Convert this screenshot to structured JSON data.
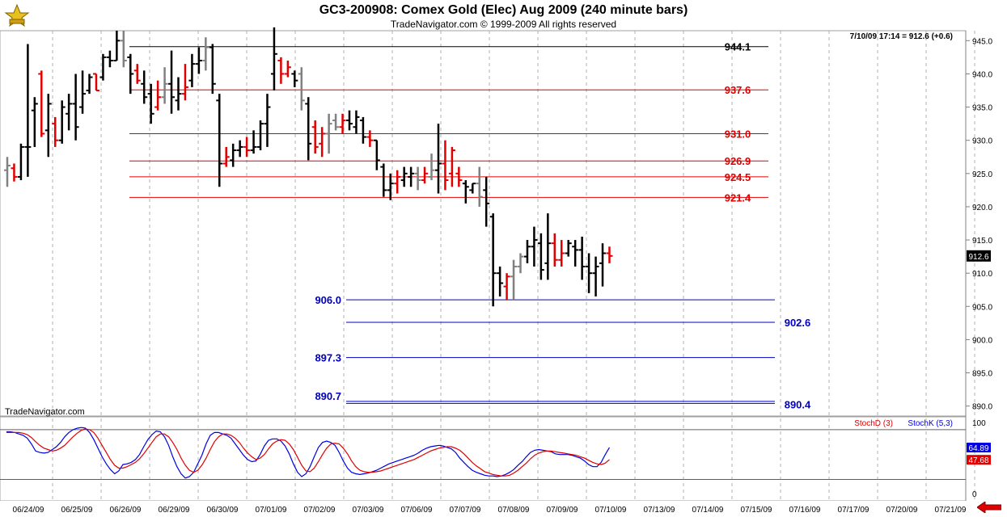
{
  "header": {
    "title": "GC3-200908:  Comex Gold (Elec) Aug 2009  (240 minute bars)",
    "subtitle": "TradeNavigator.com © 1999-2009 All rights reserved"
  },
  "info": {
    "last_update": "7/10/09 17:14 = 912.6 (+0.6)",
    "watermark": "TradeNavigator.com"
  },
  "colors": {
    "up_bar": "#000000",
    "down_bar": "#e00000",
    "neutral_bar": "#808080",
    "resistance_line": "#e00000",
    "support_line": "#0000c0",
    "grid": "#b0b0b0",
    "stoch_d": "#e00000",
    "stoch_k": "#0000e0"
  },
  "icons": {
    "logo": "trade-navigator-logo-icon",
    "scroll": "red-left-arrow-icon"
  },
  "chart_data": [
    {
      "type": "ohlc",
      "title": "GC3-200908:  Comex Gold (Elec) Aug 2009  (240 minute bars)",
      "y_axis": {
        "ticks": [
          890.0,
          895.0,
          900.0,
          905.0,
          910.0,
          915.0,
          920.0,
          925.0,
          930.0,
          935.0,
          940.0,
          945.0
        ],
        "range": [
          888.5,
          946.5
        ]
      },
      "x_labels": [
        "06/24/09",
        "06/25/09",
        "06/26/09",
        "06/29/09",
        "06/30/09",
        "07/01/09",
        "07/02/09",
        "07/03/09",
        "07/06/09",
        "07/07/09",
        "07/08/09",
        "07/09/09",
        "07/10/09",
        "07/13/09",
        "07/14/09",
        "07/15/09",
        "07/16/09",
        "07/17/09",
        "07/20/09",
        "07/21/09"
      ],
      "last_price": "912.6",
      "horizontal_levels": [
        {
          "value": 944.1,
          "label": "944.1",
          "color": "#000000"
        },
        {
          "value": 937.6,
          "label": "937.6",
          "color": "#e00000"
        },
        {
          "value": 931.0,
          "label": "931.0",
          "color": "#e00000"
        },
        {
          "value": 926.9,
          "label": "926.9",
          "color": "#e00000"
        },
        {
          "value": 924.5,
          "label": "924.5",
          "color": "#e00000"
        },
        {
          "value": 921.4,
          "label": "921.4",
          "color": "#e00000"
        },
        {
          "value": 906.0,
          "label": "906.0",
          "color": "#0000c0"
        },
        {
          "value": 902.6,
          "label": "902.6",
          "color": "#0000c0"
        },
        {
          "value": 897.3,
          "label": "897.3",
          "color": "#0000c0"
        },
        {
          "value": 890.7,
          "label": "890.7",
          "color": "#0000c0"
        },
        {
          "value": 890.4,
          "label": "890.4",
          "color": "#0000c0"
        }
      ],
      "bars": [
        {
          "h": 927.5,
          "l": 923.0,
          "o": 925.5,
          "c": 926.2,
          "k": "g"
        },
        {
          "h": 926.5,
          "l": 923.8,
          "o": 925.8,
          "c": 924.5,
          "k": "r"
        },
        {
          "h": 929.5,
          "l": 924.0,
          "o": 924.5,
          "c": 929.0,
          "k": "b"
        },
        {
          "h": 944.5,
          "l": 924.5,
          "o": 929.0,
          "c": 929.0,
          "k": "b"
        },
        {
          "h": 936.5,
          "l": 929.0,
          "o": 934.5,
          "c": 935.5,
          "k": "b"
        },
        {
          "h": 940.5,
          "l": 930.5,
          "o": 940.0,
          "c": 931.0,
          "k": "r"
        },
        {
          "h": 937.0,
          "l": 927.5,
          "o": 931.5,
          "c": 935.5,
          "k": "b"
        },
        {
          "h": 933.5,
          "l": 929.0,
          "o": 932.5,
          "c": 930.0,
          "k": "r"
        },
        {
          "h": 936.0,
          "l": 929.5,
          "o": 930.0,
          "c": 935.0,
          "k": "b"
        },
        {
          "h": 937.0,
          "l": 931.5,
          "o": 934.0,
          "c": 935.5,
          "k": "b"
        },
        {
          "h": 940.0,
          "l": 930.0,
          "o": 935.5,
          "c": 932.0,
          "k": "b"
        },
        {
          "h": 940.5,
          "l": 934.0,
          "o": 935.0,
          "c": 937.0,
          "k": "b"
        },
        {
          "h": 940.0,
          "l": 937.0,
          "o": 937.5,
          "c": 939.5,
          "k": "b"
        },
        {
          "h": 940.0,
          "l": 937.5,
          "o": 940.0,
          "c": 937.5,
          "k": "r"
        },
        {
          "h": 943.0,
          "l": 939.0,
          "o": 939.5,
          "c": 942.5,
          "k": "b"
        },
        {
          "h": 943.5,
          "l": 941.0,
          "o": 942.5,
          "c": 942.0,
          "k": "b"
        },
        {
          "h": 946.5,
          "l": 942.0,
          "o": 942.0,
          "c": 945.0,
          "k": "b"
        },
        {
          "h": 946.5,
          "l": 941.0,
          "o": 945.0,
          "c": 942.0,
          "k": "g"
        },
        {
          "h": 943.0,
          "l": 937.0,
          "o": 942.5,
          "c": 940.0,
          "k": "b"
        },
        {
          "h": 941.5,
          "l": 938.5,
          "o": 940.5,
          "c": 939.0,
          "k": "r"
        },
        {
          "h": 940.5,
          "l": 935.5,
          "o": 938.5,
          "c": 936.5,
          "k": "b"
        },
        {
          "h": 938.5,
          "l": 932.5,
          "o": 937.0,
          "c": 934.0,
          "k": "b"
        },
        {
          "h": 939.0,
          "l": 934.5,
          "o": 935.0,
          "c": 936.5,
          "k": "r"
        },
        {
          "h": 941.0,
          "l": 935.5,
          "o": 936.5,
          "c": 938.5,
          "k": "g"
        },
        {
          "h": 943.5,
          "l": 934.0,
          "o": 938.5,
          "c": 936.5,
          "k": "b"
        },
        {
          "h": 939.5,
          "l": 934.5,
          "o": 936.0,
          "c": 937.0,
          "k": "b"
        },
        {
          "h": 941.5,
          "l": 936.0,
          "o": 937.0,
          "c": 938.0,
          "k": "r"
        },
        {
          "h": 943.0,
          "l": 938.0,
          "o": 939.0,
          "c": 941.5,
          "k": "b"
        },
        {
          "h": 944.0,
          "l": 940.0,
          "o": 941.5,
          "c": 942.0,
          "k": "b"
        },
        {
          "h": 945.5,
          "l": 940.5,
          "o": 942.0,
          "c": 944.0,
          "k": "g"
        },
        {
          "h": 944.5,
          "l": 937.0,
          "o": 944.0,
          "c": 938.5,
          "k": "b"
        },
        {
          "h": 937.0,
          "l": 923.0,
          "o": 936.0,
          "c": 926.5,
          "k": "b"
        },
        {
          "h": 929.0,
          "l": 926.0,
          "o": 926.5,
          "c": 927.5,
          "k": "r"
        },
        {
          "h": 929.5,
          "l": 926.0,
          "o": 927.0,
          "c": 928.5,
          "k": "b"
        },
        {
          "h": 930.0,
          "l": 927.5,
          "o": 928.5,
          "c": 929.0,
          "k": "b"
        },
        {
          "h": 930.5,
          "l": 927.5,
          "o": 929.0,
          "c": 928.5,
          "k": "r"
        },
        {
          "h": 931.5,
          "l": 928.0,
          "o": 928.5,
          "c": 929.0,
          "k": "b"
        },
        {
          "h": 933.0,
          "l": 928.5,
          "o": 929.0,
          "c": 932.5,
          "k": "b"
        },
        {
          "h": 937.0,
          "l": 929.0,
          "o": 932.5,
          "c": 935.0,
          "k": "b"
        },
        {
          "h": 947.0,
          "l": 937.5,
          "o": 940.0,
          "c": 943.0,
          "k": "b"
        },
        {
          "h": 942.5,
          "l": 938.5,
          "o": 942.0,
          "c": 940.0,
          "k": "r"
        },
        {
          "h": 942.0,
          "l": 939.5,
          "o": 940.0,
          "c": 941.0,
          "k": "r"
        },
        {
          "h": 940.5,
          "l": 938.0,
          "o": 940.0,
          "c": 939.0,
          "k": "b"
        },
        {
          "h": 941.0,
          "l": 934.5,
          "o": 940.0,
          "c": 936.0,
          "k": "g"
        },
        {
          "h": 936.5,
          "l": 927.0,
          "o": 935.5,
          "c": 929.5,
          "k": "b"
        },
        {
          "h": 933.0,
          "l": 928.0,
          "o": 932.0,
          "c": 929.0,
          "k": "r"
        },
        {
          "h": 932.0,
          "l": 927.5,
          "o": 929.5,
          "c": 931.0,
          "k": "r"
        },
        {
          "h": 934.0,
          "l": 928.0,
          "o": 931.0,
          "c": 932.5,
          "k": "g"
        },
        {
          "h": 934.0,
          "l": 931.5,
          "o": 933.0,
          "c": 932.0,
          "k": "g"
        },
        {
          "h": 934.0,
          "l": 931.0,
          "o": 932.0,
          "c": 933.0,
          "k": "r"
        },
        {
          "h": 934.5,
          "l": 931.5,
          "o": 933.0,
          "c": 932.5,
          "k": "b"
        },
        {
          "h": 934.5,
          "l": 931.0,
          "o": 932.0,
          "c": 933.5,
          "k": "b"
        },
        {
          "h": 933.5,
          "l": 929.5,
          "o": 933.0,
          "c": 930.5,
          "k": "b"
        },
        {
          "h": 931.5,
          "l": 929.0,
          "o": 930.5,
          "c": 930.0,
          "k": "r"
        },
        {
          "h": 930.0,
          "l": 925.5,
          "o": 930.0,
          "c": 927.0,
          "k": "b"
        },
        {
          "h": 926.5,
          "l": 921.5,
          "o": 926.0,
          "c": 922.5,
          "k": "b"
        },
        {
          "h": 925.0,
          "l": 921.0,
          "o": 922.5,
          "c": 923.5,
          "k": "b"
        },
        {
          "h": 925.5,
          "l": 922.0,
          "o": 923.5,
          "c": 924.5,
          "k": "r"
        },
        {
          "h": 926.0,
          "l": 923.0,
          "o": 924.0,
          "c": 925.0,
          "k": "b"
        },
        {
          "h": 926.0,
          "l": 923.0,
          "o": 924.5,
          "c": 925.0,
          "k": "b"
        },
        {
          "h": 926.0,
          "l": 922.5,
          "o": 925.0,
          "c": 924.0,
          "k": "g"
        },
        {
          "h": 926.0,
          "l": 923.5,
          "o": 924.0,
          "c": 925.0,
          "k": "r"
        },
        {
          "h": 928.0,
          "l": 924.0,
          "o": 924.5,
          "c": 925.5,
          "k": "g"
        },
        {
          "h": 932.5,
          "l": 922.0,
          "o": 925.5,
          "c": 926.5,
          "k": "b"
        },
        {
          "h": 930.0,
          "l": 922.5,
          "o": 926.5,
          "c": 924.0,
          "k": "r"
        },
        {
          "h": 929.0,
          "l": 923.0,
          "o": 925.0,
          "c": 928.5,
          "k": "r"
        },
        {
          "h": 926.0,
          "l": 923.0,
          "o": 925.0,
          "c": 924.0,
          "k": "r"
        },
        {
          "h": 924.0,
          "l": 920.5,
          "o": 923.5,
          "c": 923.0,
          "k": "b"
        },
        {
          "h": 923.5,
          "l": 922.0,
          "o": 922.5,
          "c": 923.5,
          "k": "b"
        },
        {
          "h": 926.0,
          "l": 920.0,
          "o": 923.5,
          "c": 921.5,
          "k": "g"
        },
        {
          "h": 924.5,
          "l": 917.0,
          "o": 922.5,
          "c": 920.5,
          "k": "b"
        },
        {
          "h": 919.0,
          "l": 905.0,
          "o": 918.5,
          "c": 910.0,
          "k": "b"
        },
        {
          "h": 911.0,
          "l": 906.5,
          "o": 910.0,
          "c": 908.5,
          "k": "b"
        },
        {
          "h": 910.0,
          "l": 906.0,
          "o": 908.0,
          "c": 909.5,
          "k": "r"
        },
        {
          "h": 912.0,
          "l": 906.0,
          "o": 909.5,
          "c": 911.0,
          "k": "g"
        },
        {
          "h": 913.0,
          "l": 910.0,
          "o": 911.0,
          "c": 912.5,
          "k": "g"
        },
        {
          "h": 915.0,
          "l": 911.5,
          "o": 912.5,
          "c": 914.0,
          "k": "b"
        },
        {
          "h": 917.0,
          "l": 911.0,
          "o": 914.0,
          "c": 915.0,
          "k": "b"
        },
        {
          "h": 916.0,
          "l": 909.0,
          "o": 914.5,
          "c": 910.5,
          "k": "b"
        },
        {
          "h": 919.0,
          "l": 909.0,
          "o": 911.5,
          "c": 914.5,
          "k": "b"
        },
        {
          "h": 916.0,
          "l": 911.0,
          "o": 914.5,
          "c": 912.0,
          "k": "r"
        },
        {
          "h": 915.0,
          "l": 911.0,
          "o": 912.0,
          "c": 913.0,
          "k": "r"
        },
        {
          "h": 915.0,
          "l": 912.5,
          "o": 913.0,
          "c": 914.5,
          "k": "b"
        },
        {
          "h": 915.0,
          "l": 911.0,
          "o": 914.0,
          "c": 913.5,
          "k": "b"
        },
        {
          "h": 915.5,
          "l": 909.0,
          "o": 913.5,
          "c": 911.0,
          "k": "b"
        },
        {
          "h": 913.0,
          "l": 907.0,
          "o": 911.0,
          "c": 910.0,
          "k": "b"
        },
        {
          "h": 912.5,
          "l": 906.5,
          "o": 910.0,
          "c": 911.0,
          "k": "b"
        },
        {
          "h": 914.5,
          "l": 908.0,
          "o": 911.5,
          "c": 913.0,
          "k": "b"
        },
        {
          "h": 914.0,
          "l": 911.5,
          "o": 913.0,
          "c": 912.6,
          "k": "r"
        }
      ]
    },
    {
      "type": "line",
      "title": "Stochastic",
      "y_axis": {
        "ticks": [
          0,
          50,
          100
        ],
        "range": [
          -10,
          108
        ]
      },
      "reference_lines": [
        90,
        20
      ],
      "last_values": {
        "k": "64.89",
        "d": "47.68"
      },
      "legend": [
        {
          "name": "StochD (3)",
          "color": "#e00000"
        },
        {
          "name": "StochK (5,3)",
          "color": "#0000e0"
        }
      ],
      "series": [
        {
          "name": "StochK (5,3)",
          "values": [
            87,
            87,
            86,
            84,
            82,
            78,
            70,
            60,
            58,
            57,
            58,
            62,
            66,
            72,
            80,
            86,
            90,
            92,
            93,
            92,
            86,
            76,
            64,
            52,
            42,
            34,
            28,
            32,
            41,
            42,
            44,
            48,
            55,
            66,
            76,
            83,
            88,
            87,
            80,
            68,
            52,
            38,
            28,
            22,
            24,
            30,
            42,
            54,
            70,
            82,
            86,
            86,
            84,
            82,
            78,
            70,
            62,
            54,
            48,
            45,
            46,
            55,
            67,
            75,
            77,
            77,
            74,
            67,
            56,
            42,
            30,
            24,
            28,
            38,
            52,
            65,
            72,
            74,
            72,
            68,
            58,
            46,
            36,
            30,
            28,
            27,
            28,
            29,
            31,
            33,
            36,
            39,
            42,
            44,
            46,
            48,
            50,
            52,
            54,
            57,
            61,
            64,
            66,
            67,
            68,
            67,
            65,
            63,
            58,
            50,
            44,
            38,
            33,
            30,
            28,
            26,
            25,
            25,
            24,
            25,
            27,
            30,
            34,
            40,
            45,
            52,
            58,
            61,
            62,
            61,
            60,
            59,
            56,
            55,
            55,
            55,
            54,
            52,
            50,
            46,
            41,
            38,
            38,
            44,
            55,
            65
          ]
        },
        {
          "name": "StochD (3)",
          "values": [
            86,
            86,
            86,
            86,
            85,
            83,
            79,
            73,
            68,
            64,
            62,
            60,
            61,
            64,
            68,
            74,
            80,
            85,
            89,
            91,
            90,
            86,
            78,
            68,
            58,
            48,
            40,
            36,
            36,
            38,
            41,
            44,
            49,
            56,
            64,
            72,
            80,
            84,
            84,
            80,
            72,
            62,
            50,
            40,
            33,
            30,
            33,
            40,
            50,
            62,
            73,
            80,
            84,
            84,
            82,
            78,
            72,
            64,
            57,
            52,
            48,
            50,
            55,
            63,
            70,
            74,
            76,
            75,
            70,
            62,
            51,
            40,
            32,
            31,
            36,
            45,
            55,
            64,
            70,
            71,
            70,
            64,
            56,
            46,
            38,
            33,
            31,
            30,
            30,
            31,
            32,
            34,
            36,
            38,
            40,
            42,
            44,
            46,
            48,
            51,
            54,
            57,
            60,
            62,
            64,
            65,
            66,
            66,
            64,
            61,
            56,
            50,
            44,
            39,
            35,
            31,
            29,
            27,
            26,
            25,
            25,
            26,
            29,
            33,
            38,
            43,
            49,
            54,
            57,
            59,
            60,
            60,
            59,
            58,
            57,
            56,
            55,
            54,
            52,
            50,
            47,
            44,
            42,
            41,
            43,
            48
          ]
        }
      ]
    }
  ]
}
